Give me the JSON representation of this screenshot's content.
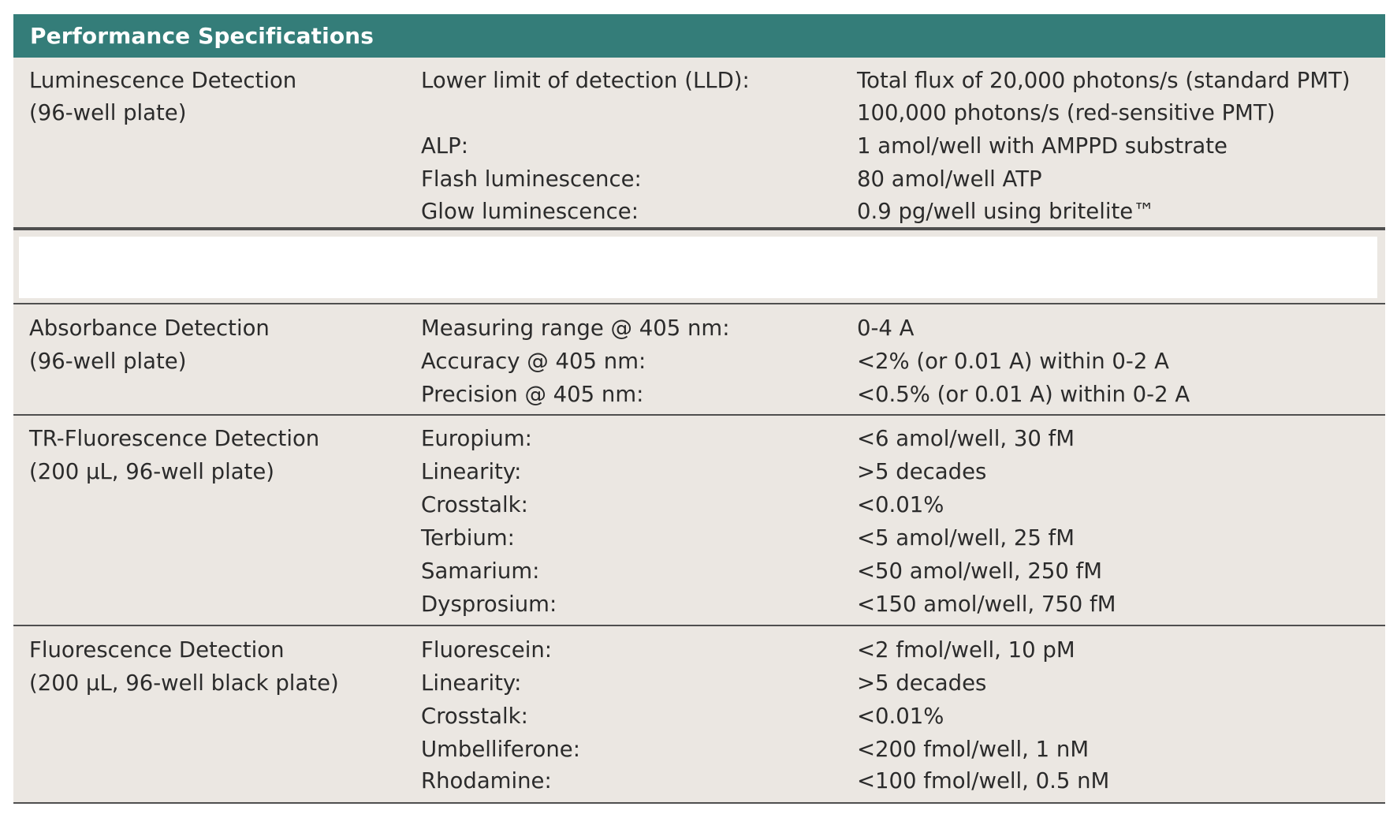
{
  "title": "Performance Specifications",
  "luminescence": {
    "name": "Luminescence Detection",
    "sub": "(96-well plate)",
    "rows": [
      {
        "label": "Lower limit of detection (LLD):",
        "value": "Total flux of 20,000 photons/s (standard PMT)"
      },
      {
        "label": "",
        "value": "100,000 photons/s (red-sensitive PMT)"
      },
      {
        "label": "ALP:",
        "value": "1 amol/well with AMPPD substrate"
      },
      {
        "label": "Flash luminescence:",
        "value": "80 amol/well ATP"
      },
      {
        "label": "Glow luminescence:",
        "value": "0.9 pg/well using britelite™"
      }
    ]
  },
  "absorbance": {
    "name": "Absorbance Detection",
    "sub": "(96-well plate)",
    "rows": [
      {
        "label": "Measuring range @ 405 nm:",
        "value": "0-4 A"
      },
      {
        "label": "Accuracy @ 405 nm:",
        "value": "<2% (or 0.01 A) within 0-2 A"
      },
      {
        "label": "Precision @ 405 nm:",
        "value": "<0.5% (or 0.01 A) within 0-2 A"
      }
    ]
  },
  "tr_fluorescence": {
    "name": "TR-Fluorescence Detection",
    "sub": "(200 µL, 96-well plate)",
    "rows": [
      {
        "label": "Europium:",
        "value": "<6 amol/well, 30 fM"
      },
      {
        "label": "Linearity:",
        "value": ">5 decades"
      },
      {
        "label": "Crosstalk:",
        "value": "<0.01%"
      },
      {
        "label": "Terbium:",
        "value": "<5 amol/well, 25 fM"
      },
      {
        "label": "Samarium:",
        "value": "<50 amol/well, 250 fM"
      },
      {
        "label": "Dysprosium:",
        "value": "<150 amol/well, 750 fM"
      }
    ]
  },
  "fluorescence": {
    "name": "Fluorescence Detection",
    "sub": "(200 µL, 96-well black plate)",
    "rows": [
      {
        "label": "Fluorescein:",
        "value": "<2 fmol/well, 10 pM"
      },
      {
        "label": "Linearity:",
        "value": ">5 decades"
      },
      {
        "label": "Crosstalk:",
        "value": "<0.01%"
      },
      {
        "label": "Umbelliferone:",
        "value": "<200 fmol/well, 1 nM"
      },
      {
        "label": "Rhodamine:",
        "value": "<100 fmol/well, 0.5 nM"
      }
    ]
  }
}
